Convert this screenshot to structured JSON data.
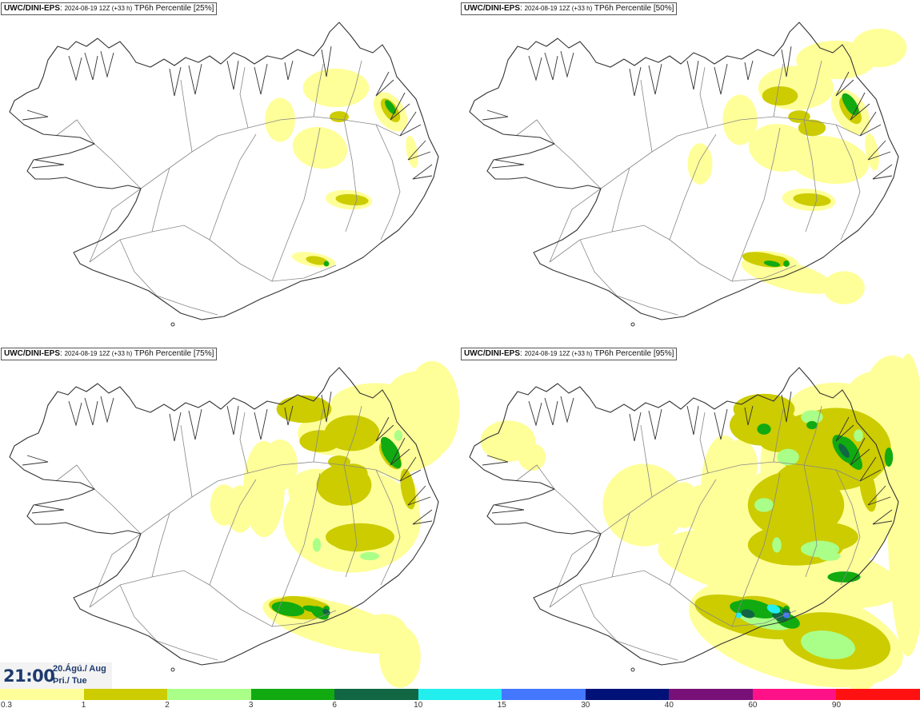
{
  "panels": [
    {
      "model": "UWC/DINI-EPS",
      "run": "2024-08-19 12Z (+33 h)",
      "product": "TP6h Percentile",
      "percentile": "[25%]"
    },
    {
      "model": "UWC/DINI-EPS",
      "run": "2024-08-19 12Z (+33 h)",
      "product": "TP6h Percentile",
      "percentile": "[50%]"
    },
    {
      "model": "UWC/DINI-EPS",
      "run": "2024-08-19 12Z (+33 h)",
      "product": "TP6h Percentile",
      "percentile": "[75%]"
    },
    {
      "model": "UWC/DINI-EPS",
      "run": "2024-08-19 12Z (+33 h)",
      "product": "TP6h Percentile",
      "percentile": "[95%]"
    }
  ],
  "valid_time": {
    "time": "21:00",
    "date_line": "20.Ágú./ Aug",
    "day_line": "Þri./ Tue"
  },
  "legend": {
    "colors": [
      "#ffff99",
      "#cccc00",
      "#aaff88",
      "#11aa11",
      "#116644",
      "#22eeee",
      "#4477ff",
      "#001177",
      "#771177",
      "#ff1188",
      "#ff1111"
    ],
    "labels": [
      "0.3",
      "1",
      "2",
      "3",
      "6",
      "10",
      "15",
      "30",
      "40",
      "60",
      "90"
    ]
  },
  "map_colors": {
    "coast": "#333333",
    "roads": "#888888",
    "background": "#ffffff"
  }
}
